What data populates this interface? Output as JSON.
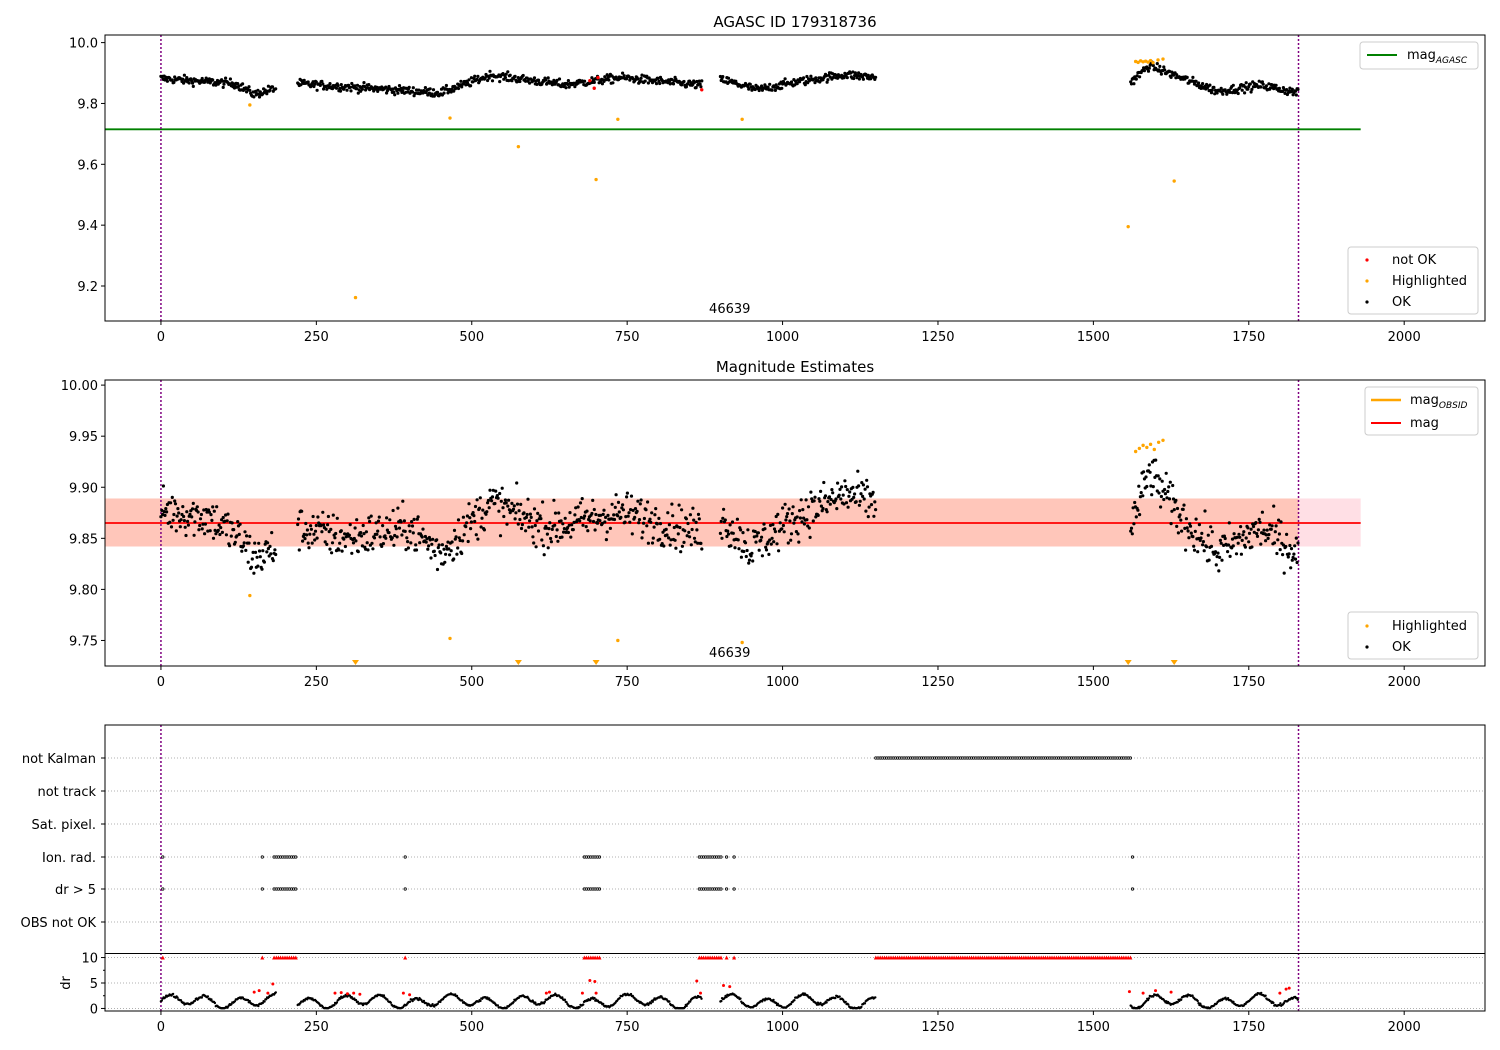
{
  "chart_data": [
    {
      "type": "scatter",
      "title": "AGASC ID 179318736",
      "xlim": [
        -90,
        2130
      ],
      "ylim": [
        9.085,
        10.025
      ],
      "xticks": [
        0,
        250,
        500,
        750,
        1000,
        1250,
        1500,
        1750,
        2000
      ],
      "yticks": [
        9.2,
        9.4,
        9.6,
        9.8,
        10.0
      ],
      "ytick_labels": [
        "9.2",
        "9.4",
        "9.6",
        "9.8",
        "10.0"
      ],
      "annotation": "46639",
      "annotation_x": 915,
      "annotation_y": 9.112,
      "vlines_x": [
        0,
        1830
      ],
      "hline": {
        "y": 9.715,
        "x_end": 1930,
        "color": "#008000"
      },
      "legend_top": {
        "placement": "upper right",
        "entries": [
          {
            "label": "mag",
            "sub": "AGASC",
            "color": "#008000"
          }
        ]
      },
      "legend_bottom": {
        "placement": "lower right",
        "entries": [
          {
            "label": "not OK",
            "color": "#ff0000"
          },
          {
            "label": "Highlighted",
            "color": "#ffa500"
          },
          {
            "label": "OK",
            "color": "#000000"
          }
        ]
      },
      "segments": [
        {
          "start": 0,
          "end": 185,
          "base": 9.878,
          "trend": [
            [
              0,
              9.882
            ],
            [
              120,
              9.865
            ],
            [
              150,
              9.83
            ],
            [
              185,
              9.85
            ]
          ]
        },
        {
          "start": 220,
          "end": 870,
          "base": 9.865,
          "trend": [
            [
              220,
              9.865
            ],
            [
              450,
              9.835
            ],
            [
              530,
              9.893
            ],
            [
              650,
              9.862
            ],
            [
              740,
              9.885
            ],
            [
              870,
              9.86
            ]
          ]
        },
        {
          "start": 900,
          "end": 1150,
          "base": 9.87,
          "trend": [
            [
              900,
              9.88
            ],
            [
              960,
              9.845
            ],
            [
              1020,
              9.87
            ],
            [
              1100,
              9.895
            ],
            [
              1150,
              9.885
            ]
          ]
        },
        {
          "start": 1560,
          "end": 1830,
          "base": 9.87,
          "trend": [
            [
              1560,
              9.87
            ],
            [
              1590,
              9.925
            ],
            [
              1640,
              9.885
            ],
            [
              1700,
              9.84
            ],
            [
              1770,
              9.86
            ],
            [
              1830,
              9.835
            ]
          ]
        }
      ],
      "highlighted": [
        [
          143,
          9.795
        ],
        [
          313,
          9.162
        ],
        [
          465,
          9.752
        ],
        [
          575,
          9.658
        ],
        [
          700,
          9.55
        ],
        [
          735,
          9.748
        ],
        [
          935,
          9.748
        ],
        [
          1556,
          9.395
        ],
        [
          1630,
          9.545
        ],
        [
          1568,
          9.938
        ],
        [
          1572,
          9.935
        ],
        [
          1576,
          9.94
        ],
        [
          1580,
          9.937
        ],
        [
          1584,
          9.939
        ],
        [
          1588,
          9.936
        ],
        [
          1592,
          9.941
        ],
        [
          1596,
          9.934
        ],
        [
          1604,
          9.943
        ],
        [
          1612,
          9.946
        ]
      ],
      "not_ok": [
        [
          690,
          9.875
        ],
        [
          697,
          9.85
        ],
        [
          703,
          9.885
        ],
        [
          870,
          9.845
        ]
      ]
    },
    {
      "type": "scatter",
      "title": "Magnitude Estimates",
      "xlim": [
        -90,
        2130
      ],
      "ylim": [
        9.725,
        10.005
      ],
      "xticks": [
        0,
        250,
        500,
        750,
        1000,
        1250,
        1500,
        1750,
        2000
      ],
      "yticks": [
        9.75,
        9.8,
        9.85,
        9.9,
        9.95,
        10.0
      ],
      "ytick_labels": [
        "9.75",
        "9.80",
        "9.85",
        "9.90",
        "9.95",
        "10.00"
      ],
      "annotation": "46639",
      "annotation_x": 915,
      "annotation_y": 9.734,
      "vlines_x": [
        0,
        1830
      ],
      "mag_line": {
        "y": 9.865,
        "x_end": 1930,
        "color": "#ff0000"
      },
      "band_outer": {
        "y0": 9.842,
        "y1": 9.889
      },
      "band_inner": {
        "y0": 9.842,
        "y1": 9.889,
        "x_end": 1830
      },
      "legend_top": {
        "placement": "upper right",
        "entries": [
          {
            "label": "mag",
            "sub": "OBSID",
            "color": "#ffa500"
          },
          {
            "label": "mag",
            "sub": "",
            "color": "#ff0000"
          }
        ]
      },
      "legend_bottom": {
        "placement": "lower right",
        "entries": [
          {
            "label": "Highlighted",
            "color": "#ffa500"
          },
          {
            "label": "OK",
            "color": "#000000"
          }
        ]
      },
      "segments": [
        {
          "start": 0,
          "end": 185,
          "base": 9.87,
          "trend": [
            [
              0,
              9.878
            ],
            [
              80,
              9.87
            ],
            [
              130,
              9.848
            ],
            [
              150,
              9.83
            ],
            [
              185,
              9.84
            ]
          ]
        },
        {
          "start": 220,
          "end": 870,
          "base": 9.86,
          "trend": [
            [
              220,
              9.86
            ],
            [
              300,
              9.85
            ],
            [
              400,
              9.86
            ],
            [
              450,
              9.835
            ],
            [
              530,
              9.885
            ],
            [
              620,
              9.86
            ],
            [
              740,
              9.875
            ],
            [
              870,
              9.855
            ]
          ]
        },
        {
          "start": 900,
          "end": 1150,
          "base": 9.865,
          "trend": [
            [
              900,
              9.87
            ],
            [
              950,
              9.84
            ],
            [
              1020,
              9.87
            ],
            [
              1100,
              9.893
            ],
            [
              1150,
              9.885
            ]
          ]
        },
        {
          "start": 1560,
          "end": 1830,
          "base": 9.87,
          "trend": [
            [
              1560,
              9.86
            ],
            [
              1590,
              9.915
            ],
            [
              1640,
              9.87
            ],
            [
              1700,
              9.835
            ],
            [
              1770,
              9.86
            ],
            [
              1830,
              9.835
            ]
          ]
        }
      ],
      "highlighted": [
        [
          143,
          9.794
        ],
        [
          465,
          9.752
        ],
        [
          735,
          9.75
        ],
        [
          935,
          9.748
        ],
        [
          1568,
          9.935
        ],
        [
          1574,
          9.938
        ],
        [
          1580,
          9.941
        ],
        [
          1586,
          9.939
        ],
        [
          1592,
          9.942
        ],
        [
          1598,
          9.937
        ],
        [
          1605,
          9.944
        ],
        [
          1612,
          9.946
        ]
      ],
      "highlighted_off_axis_x": [
        313,
        575,
        700,
        1556,
        1630
      ]
    },
    {
      "type": "scatter",
      "title": "",
      "xlim": [
        -90,
        2130
      ],
      "xticks": [
        0,
        250,
        500,
        750,
        1000,
        1250,
        1500,
        1750,
        2000
      ],
      "vlines_x": [
        0,
        1830
      ],
      "flag_rows": [
        "not Kalman",
        "not track",
        "Sat. pixel.",
        "Ion. rad.",
        "dr > 5",
        "OBS not OK"
      ],
      "flags": {
        "not Kalman": [
          [
            1150,
            1560
          ]
        ],
        "not track": [],
        "Sat. pixel.": [],
        "Ion. rad.": [
          [
            3,
            3
          ],
          [
            163,
            163
          ],
          [
            182,
            218
          ],
          [
            393,
            393
          ],
          [
            681,
            706
          ],
          [
            866,
            902
          ],
          [
            910,
            910
          ],
          [
            922,
            922
          ],
          [
            1563,
            1563
          ]
        ],
        "dr > 5": [
          [
            3,
            3
          ],
          [
            163,
            163
          ],
          [
            182,
            218
          ],
          [
            393,
            393
          ],
          [
            681,
            706
          ],
          [
            866,
            902
          ],
          [
            910,
            910
          ],
          [
            922,
            922
          ],
          [
            1563,
            1563
          ]
        ],
        "OBS not OK": []
      },
      "dr": {
        "ylabel": "dr",
        "ylim": [
          -0.5,
          10.5
        ],
        "yticks": [
          0,
          5,
          10
        ],
        "ytick_labels": [
          "0",
          "5",
          "10"
        ],
        "capped_red": [
          [
            3,
            3
          ],
          [
            163,
            163
          ],
          [
            182,
            218
          ],
          [
            393,
            393
          ],
          [
            681,
            706
          ],
          [
            866,
            902
          ],
          [
            910,
            910
          ],
          [
            922,
            922
          ],
          [
            1150,
            1560
          ]
        ],
        "segments": [
          [
            0,
            185
          ],
          [
            220,
            870
          ],
          [
            900,
            1150
          ],
          [
            1560,
            1830
          ]
        ],
        "red_points": [
          [
            150,
            3.2
          ],
          [
            158,
            3.5
          ],
          [
            172,
            3.0
          ],
          [
            180,
            4.8
          ],
          [
            280,
            3.0
          ],
          [
            290,
            3.1
          ],
          [
            300,
            2.9
          ],
          [
            310,
            3.0
          ],
          [
            320,
            2.8
          ],
          [
            390,
            3.0
          ],
          [
            400,
            2.7
          ],
          [
            620,
            3.0
          ],
          [
            625,
            3.2
          ],
          [
            678,
            3.0
          ],
          [
            690,
            5.5
          ],
          [
            698,
            5.3
          ],
          [
            700,
            3.0
          ],
          [
            862,
            5.4
          ],
          [
            868,
            3.0
          ],
          [
            905,
            4.5
          ],
          [
            915,
            4.3
          ],
          [
            1558,
            3.3
          ],
          [
            1580,
            3.0
          ],
          [
            1600,
            3.5
          ],
          [
            1625,
            3.2
          ],
          [
            1800,
            3.0
          ],
          [
            1810,
            3.8
          ],
          [
            1815,
            4.0
          ]
        ]
      }
    }
  ]
}
